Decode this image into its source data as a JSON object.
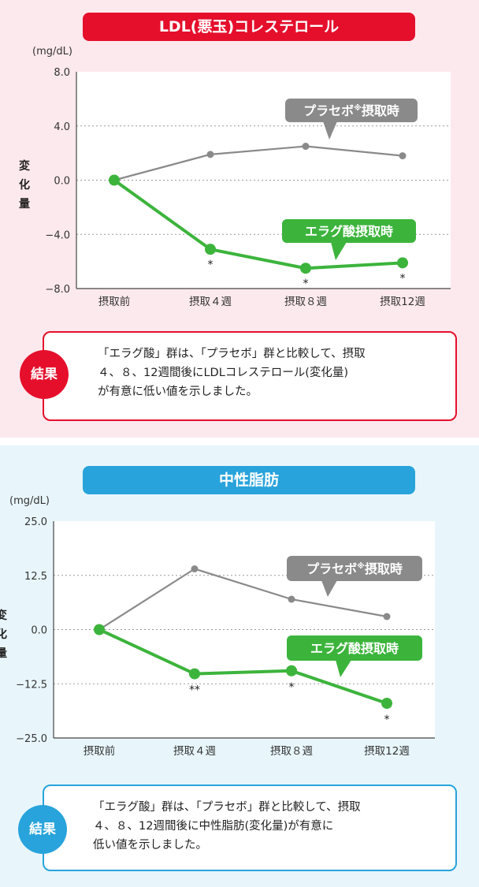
{
  "chart_data": [
    {
      "type": "line",
      "title": "LDL(悪玉)コレステロール",
      "unit": "(mg/dL)",
      "ylabel": "変化量",
      "ylim": [
        -8.0,
        8.0
      ],
      "yticks": [
        "8.0",
        "4.0",
        "0.0",
        "−4.0",
        "−8.0"
      ],
      "ytick_values": [
        8.0,
        4.0,
        0.0,
        -4.0,
        -8.0
      ],
      "categories": [
        "摂取前",
        "摂取４週",
        "摂取８週",
        "摂取12週"
      ],
      "series": [
        {
          "name": "プラセボ",
          "label_mark": "※",
          "label_suffix": "摂取時",
          "color": "#8a8a8a",
          "values": [
            0.0,
            1.9,
            2.5,
            1.8
          ]
        },
        {
          "name": "エラグ酸摂取時",
          "color": "#3cb43c",
          "values": [
            0.0,
            -5.1,
            -6.5,
            -6.1
          ]
        }
      ],
      "significance": [
        "",
        "*",
        "*",
        "*"
      ],
      "result_label": "結果",
      "result_lines": [
        "「エラグ酸」群は、「プラセボ」群と比較して、摂取",
        "４、８、12週間後にLDLコレステロール(変化量)",
        "が有意に低い値を示しました。"
      ],
      "accent": "#e50f2c",
      "background": "#fce9ee"
    },
    {
      "type": "line",
      "title": "中性脂肪",
      "unit": "(mg/dL)",
      "ylabel": "変化量",
      "ylim": [
        -25.0,
        25.0
      ],
      "yticks": [
        "25.0",
        "12.5",
        "0.0",
        "−12.5",
        "−25.0"
      ],
      "ytick_values": [
        25.0,
        12.5,
        0.0,
        -12.5,
        -25.0
      ],
      "categories": [
        "摂取前",
        "摂取４週",
        "摂取８週",
        "摂取12週"
      ],
      "series": [
        {
          "name": "プラセボ",
          "label_mark": "※",
          "label_suffix": "摂取時",
          "color": "#8a8a8a",
          "values": [
            0.0,
            14.0,
            7.0,
            3.0
          ]
        },
        {
          "name": "エラグ酸摂取時",
          "color": "#3cb43c",
          "values": [
            0.0,
            -10.2,
            -9.5,
            -17.0
          ]
        }
      ],
      "significance": [
        "",
        "**",
        "*",
        "*"
      ],
      "result_label": "結果",
      "result_lines": [
        "「エラグ酸」群は、「プラセボ」群と比較して、摂取",
        "４、８、12週間後に中性脂肪(変化量)が有意に",
        "低い値を示しました。"
      ],
      "accent": "#28a3db",
      "background": "#e8f6fb"
    }
  ]
}
